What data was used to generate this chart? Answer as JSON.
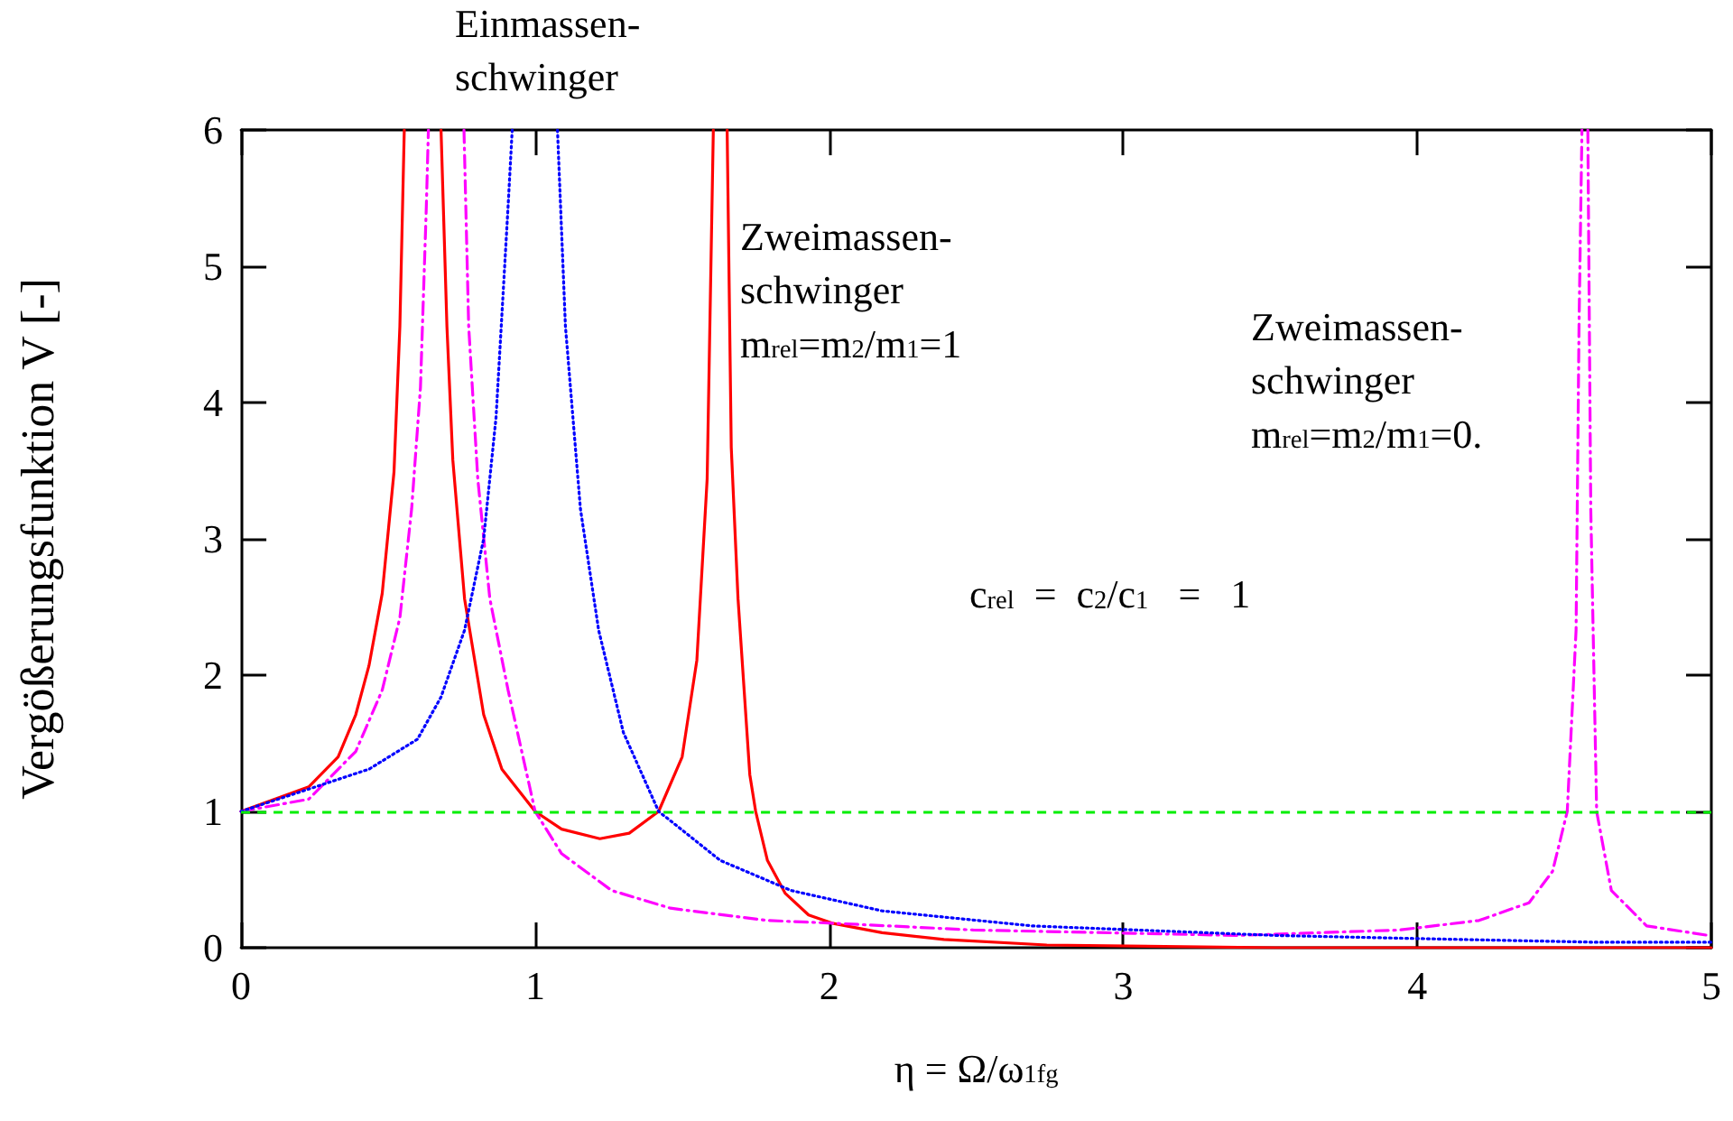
{
  "chart_data": {
    "type": "line",
    "xlabel": "η = Ω/ω$_{1fg}$",
    "ylabel": "Vergößerungsfunktion V [-]",
    "annotations": [
      "Einmassen-\nschwinger",
      "Zweimassen-\nschwinger\nm$_{rel}$=m$_{2}$/m$_{1}$=1",
      "Zweimassen-\nschwinger\nm$_{rel}$=m$_{2}$/m$_{1}$=0.",
      "c$_{rel}$  =  c$_{2}$/c$_{1}$   =   1"
    ],
    "xlim": [
      0,
      5
    ],
    "ylim": [
      0,
      6
    ],
    "xticks": [
      0,
      1,
      2,
      3,
      4,
      5
    ],
    "yticks": [
      0,
      1,
      2,
      3,
      4,
      5,
      6
    ],
    "grid": false,
    "marker": "none",
    "ref_lines": [
      {
        "axis": "y",
        "value": 1,
        "color": "#00ee00",
        "line_style": "dashed"
      }
    ],
    "series": [
      {
        "color": "#ff0000",
        "line_style": "solid",
        "x": [
          0,
          0.23,
          0.33,
          0.39,
          0.435,
          0.48,
          0.52,
          0.54,
          0.555,
          null,
          0.68,
          0.7,
          0.72,
          0.76,
          0.825,
          0.887,
          1.0,
          1.09,
          1.22,
          1.32,
          1.42,
          1.5,
          1.55,
          1.585,
          1.606,
          null,
          1.653,
          1.667,
          1.69,
          1.73,
          1.75,
          1.79,
          1.85,
          1.93,
          2.01,
          2.18,
          2.39,
          2.74,
          3.52,
          5
        ],
        "values": [
          1,
          1.18,
          1.4,
          1.71,
          2.07,
          2.6,
          3.49,
          4.56,
          6,
          null,
          6,
          4.56,
          3.58,
          2.56,
          1.71,
          1.31,
          1.0,
          0.87,
          0.8,
          0.84,
          1.0,
          1.4,
          2.11,
          3.44,
          6,
          null,
          6,
          3.67,
          2.56,
          1.27,
          1.0,
          0.64,
          0.4,
          0.24,
          0.18,
          0.11,
          0.06,
          0.02,
          0,
          0
        ]
      },
      {
        "color": "#ff00ff",
        "line_style": "dashed",
        "x": [
          0,
          0.23,
          0.39,
          0.48,
          0.54,
          0.58,
          0.61,
          0.63,
          0.637,
          null,
          0.758,
          0.774,
          0.805,
          0.846,
          0.908,
          1.0,
          1.09,
          1.26,
          1.46,
          1.79,
          2.01,
          2.49,
          3.39,
          3.94,
          4.21,
          4.38,
          4.46,
          4.51,
          4.54,
          4.55,
          4.56,
          null,
          4.58,
          4.59,
          4.61,
          4.66,
          4.78,
          4.99
        ],
        "values": [
          1,
          1.09,
          1.44,
          1.89,
          2.42,
          3.22,
          4.11,
          5.44,
          6,
          null,
          6,
          4.56,
          3.44,
          2.56,
          1.89,
          1.0,
          0.69,
          0.42,
          0.29,
          0.2,
          0.18,
          0.13,
          0.09,
          0.13,
          0.2,
          0.33,
          0.56,
          1.0,
          2.33,
          4.56,
          6,
          null,
          6,
          3.22,
          1.0,
          0.42,
          0.16,
          0.09
        ]
      },
      {
        "color": "#0000ff",
        "line_style": "dotted",
        "x": [
          0,
          0.435,
          0.6,
          0.68,
          0.76,
          0.825,
          0.867,
          0.908,
          0.922,
          null,
          1.076,
          1.103,
          1.154,
          1.216,
          1.3,
          1.42,
          1.63,
          1.87,
          2.18,
          2.69,
          3.52,
          3.94,
          4.61,
          5
        ],
        "values": [
          1,
          1.31,
          1.53,
          1.84,
          2.33,
          3.0,
          3.89,
          5.44,
          6,
          null,
          6,
          4.56,
          3.22,
          2.33,
          1.58,
          1.0,
          0.64,
          0.42,
          0.27,
          0.16,
          0.09,
          0.07,
          0.04,
          0.04
        ]
      }
    ]
  }
}
